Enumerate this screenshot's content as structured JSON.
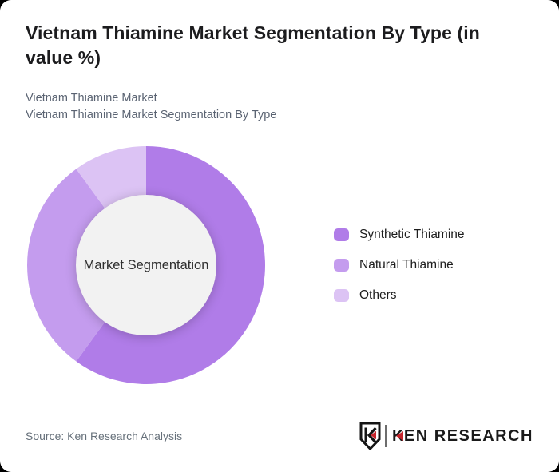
{
  "card": {
    "background": "#ffffff",
    "page_background": "#000000"
  },
  "header": {
    "title": "Vietnam Thiamine Market Segmentation By Type (in value %)",
    "subtitle_line1": "Vietnam Thiamine Market",
    "subtitle_line2": "Vietnam Thiamine Market Segmentation By Type"
  },
  "chart_data": {
    "type": "pie",
    "variant": "donut",
    "title": "Vietnam Thiamine Market Segmentation By Type (in value %)",
    "center_label": "Market Segmentation",
    "categories": [
      "Synthetic Thiamine",
      "Natural Thiamine",
      "Others"
    ],
    "values": [
      60,
      30,
      10
    ],
    "unit": "value %",
    "colors": [
      "#b07ce8",
      "#c49cee",
      "#dcc3f4"
    ],
    "start_angle_deg": 0,
    "clockwise": true,
    "inner_radius_ratio": 0.59,
    "inner_circle_color": "#f2f2f2",
    "legend_position": "right"
  },
  "footer": {
    "source": "Source: Ken Research Analysis",
    "logo_wordmark": "KEN RESEARCH",
    "logo_red": "#c5252c",
    "logo_dark": "#1a1a1a"
  }
}
